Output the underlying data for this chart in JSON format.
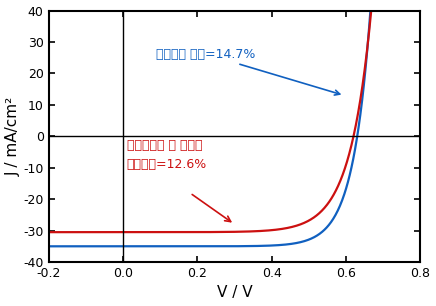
{
  "title": "",
  "xlabel": "V / V",
  "ylabel": "J / mA/cm²",
  "xlim": [
    -0.2,
    0.8
  ],
  "ylim": [
    -40,
    40
  ],
  "xticks": [
    -0.2,
    0.0,
    0.2,
    0.4,
    0.6,
    0.8
  ],
  "yticks": [
    -40,
    -30,
    -20,
    -10,
    0,
    10,
    20,
    30,
    40
  ],
  "blue_label": "기준소자 효율=14.7%",
  "red_label_line1": "나노복합체 를 적용한",
  "red_label_line2": "소자효율=12.6%",
  "blue_color": "#1060c0",
  "red_color": "#cc1010",
  "blue_jsc": -35.0,
  "blue_voc": 0.63,
  "red_jsc": -30.5,
  "red_voc": 0.62,
  "n_blue": 1.8,
  "n_red": 2.2,
  "figsize": [
    4.36,
    3.06
  ],
  "dpi": 100
}
